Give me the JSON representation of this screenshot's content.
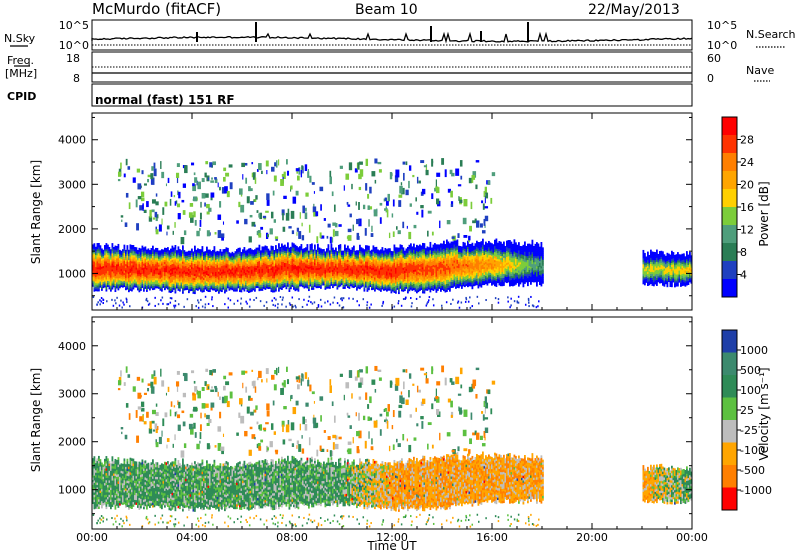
{
  "header": {
    "station": "McMurdo (fitACF)",
    "beam": "Beam 10",
    "date": "22/May/2013"
  },
  "top_strip": {
    "nsky_label": "N.Sky",
    "nsearch_label": "N.Search",
    "freq_label": "Freq.",
    "freq_unit": "[MHz]",
    "nave_label": "Nave",
    "cpid_label": "CPID",
    "cpid_value": "normal (fast) 151 RF",
    "noise_ticks_left": [
      "10^5",
      "10^0"
    ],
    "noise_ticks_right": [
      "10^5",
      "10^0"
    ],
    "freq_ticks": [
      "18",
      "8"
    ],
    "nave_ticks": [
      "60",
      "0"
    ]
  },
  "x_axis": {
    "label": "Time UT",
    "ticks": [
      "00:00",
      "04:00",
      "08:00",
      "12:00",
      "16:00",
      "20:00",
      "00:00"
    ]
  },
  "power_panel": {
    "ylabel": "Slant Range [km]",
    "yticks": [
      "4000",
      "3000",
      "2000",
      "1000"
    ],
    "colorbar_label": "Power [dB]",
    "colorbar_ticks": [
      "28",
      "24",
      "20",
      "16",
      "12",
      "8",
      "4"
    ],
    "colors": [
      "#ff0000",
      "#ff3300",
      "#ff7f00",
      "#ffa500",
      "#ffd000",
      "#7ccd3a",
      "#4f9e7c",
      "#2a7d55",
      "#1f40c0",
      "#0000ff"
    ]
  },
  "velocity_panel": {
    "ylabel": "Slant Range [km]",
    "yticks": [
      "4000",
      "3000",
      "2000",
      "1000"
    ],
    "colorbar_label": "Velocity [m s⁻¹]",
    "colorbar_ticks": [
      "1000",
      "500",
      "100",
      "25",
      "-25",
      "-100",
      "-500",
      "-1000"
    ],
    "colors": [
      "#1f3fa8",
      "#3c8a6e",
      "#2e8b57",
      "#5cc040",
      "#bdbdbd",
      "#ffa500",
      "#ff7f00",
      "#ff0000"
    ]
  },
  "chart_data": [
    {
      "type": "heatmap",
      "title": "Power",
      "xlabel": "Time UT",
      "ylabel": "Slant Range [km]",
      "xlim": [
        "00:00",
        "24:00"
      ],
      "ylim": [
        180,
        4600
      ],
      "colorbar": {
        "label": "Power [dB]",
        "range": [
          0,
          32
        ]
      },
      "time_hours": [
        0,
        2,
        4,
        6,
        8,
        10,
        12,
        14,
        16,
        18,
        20,
        22,
        24
      ],
      "band_lower_km": [
        650,
        640,
        600,
        620,
        650,
        700,
        600,
        620,
        750,
        760,
        null,
        760,
        750
      ],
      "band_upper_km": [
        1600,
        1550,
        1550,
        1500,
        1600,
        1550,
        1550,
        1650,
        1700,
        1650,
        null,
        1450,
        1400
      ],
      "core_power_db": [
        30,
        30,
        30,
        30,
        30,
        30,
        30,
        28,
        24,
        12,
        null,
        18,
        20
      ]
    },
    {
      "type": "heatmap",
      "title": "Velocity",
      "xlabel": "Time UT",
      "ylabel": "Slant Range [km]",
      "xlim": [
        "00:00",
        "24:00"
      ],
      "ylim": [
        180,
        4600
      ],
      "colorbar": {
        "label": "Velocity [m s⁻¹]",
        "range": [
          -1000,
          1000
        ]
      },
      "time_hours": [
        0,
        2,
        4,
        6,
        8,
        10,
        12,
        14,
        16,
        18,
        20,
        22,
        24
      ],
      "band_lower_km": [
        650,
        640,
        600,
        620,
        650,
        700,
        600,
        620,
        750,
        760,
        null,
        760,
        750
      ],
      "band_upper_km": [
        1600,
        1550,
        1550,
        1500,
        1600,
        1550,
        1550,
        1650,
        1700,
        1650,
        null,
        1450,
        1400
      ],
      "dominant_velocity": [
        100,
        100,
        100,
        100,
        100,
        100,
        -100,
        -100,
        -100,
        -100,
        null,
        -100,
        100
      ]
    }
  ]
}
